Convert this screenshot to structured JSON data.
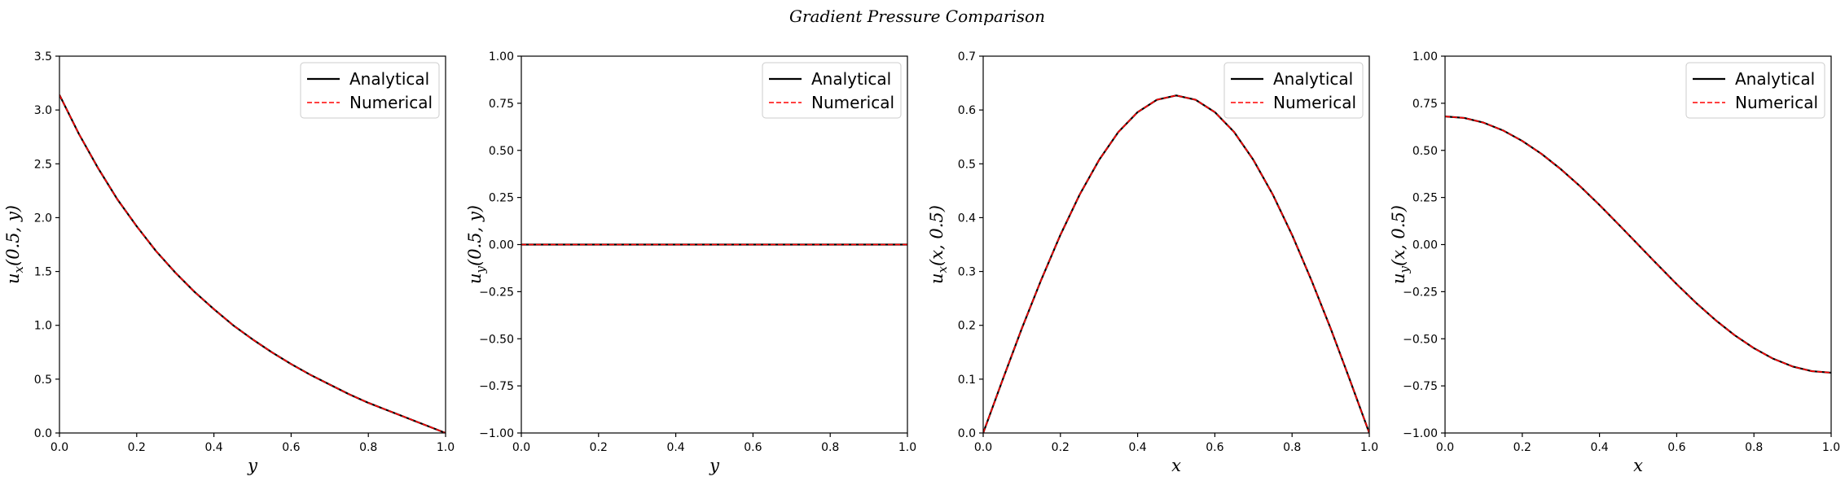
{
  "figure": {
    "title": "Gradient Pressure Comparison"
  },
  "colors": {
    "analytical": "#000000",
    "numerical": "#ff0000",
    "axes": "#000000",
    "legend_border": "#cccccc"
  },
  "chart_data": [
    {
      "type": "line",
      "xlabel": "y",
      "ylabel": "u_x(0.5, y)",
      "ylabel_parts": {
        "var": "u",
        "sub": "x",
        "args": "(0.5, y)"
      },
      "xlim": [
        0,
        1
      ],
      "ylim": [
        0,
        3.5
      ],
      "xticks": [
        0.0,
        0.2,
        0.4,
        0.6,
        0.8,
        1.0
      ],
      "xtick_labels": [
        "0.0",
        "0.2",
        "0.4",
        "0.6",
        "0.8",
        "1.0"
      ],
      "yticks": [
        0,
        0.5,
        1.0,
        1.5,
        2.0,
        2.5,
        3.0,
        3.5
      ],
      "ytick_labels": [
        "0.0",
        "0.5",
        "1.0",
        "1.5",
        "2.0",
        "2.5",
        "3.0",
        "3.5"
      ],
      "legend": {
        "position": "top-right",
        "entries": [
          "Analytical",
          "Numerical"
        ]
      },
      "x": [
        0.0,
        0.05,
        0.1,
        0.15,
        0.2,
        0.25,
        0.3,
        0.35,
        0.4,
        0.45,
        0.5,
        0.55,
        0.6,
        0.65,
        0.7,
        0.75,
        0.8,
        0.85,
        0.9,
        0.95,
        1.0
      ],
      "series": [
        {
          "name": "Analytical",
          "style": "solid",
          "values": [
            3.14,
            2.78,
            2.46,
            2.17,
            1.92,
            1.69,
            1.49,
            1.31,
            1.15,
            1.0,
            0.87,
            0.75,
            0.64,
            0.54,
            0.45,
            0.36,
            0.28,
            0.21,
            0.14,
            0.07,
            0.0
          ]
        },
        {
          "name": "Numerical",
          "style": "dashed",
          "values": [
            3.14,
            2.78,
            2.46,
            2.17,
            1.92,
            1.69,
            1.49,
            1.31,
            1.15,
            1.0,
            0.87,
            0.75,
            0.64,
            0.54,
            0.45,
            0.36,
            0.28,
            0.21,
            0.14,
            0.07,
            0.0
          ]
        }
      ]
    },
    {
      "type": "line",
      "xlabel": "y",
      "ylabel": "u_y(0.5, y)",
      "ylabel_parts": {
        "var": "u",
        "sub": "y",
        "args": "(0.5, y)"
      },
      "xlim": [
        0,
        1
      ],
      "ylim": [
        -1,
        1
      ],
      "xticks": [
        0.0,
        0.2,
        0.4,
        0.6,
        0.8,
        1.0
      ],
      "xtick_labels": [
        "0.0",
        "0.2",
        "0.4",
        "0.6",
        "0.8",
        "1.0"
      ],
      "yticks": [
        -1.0,
        -0.75,
        -0.5,
        -0.25,
        0.0,
        0.25,
        0.5,
        0.75,
        1.0
      ],
      "ytick_labels": [
        "−1.00",
        "−0.75",
        "−0.50",
        "−0.25",
        "0.00",
        "0.25",
        "0.50",
        "0.75",
        "1.00"
      ],
      "legend": {
        "position": "top-right",
        "entries": [
          "Analytical",
          "Numerical"
        ]
      },
      "x": [
        0.0,
        0.25,
        0.5,
        0.75,
        1.0
      ],
      "series": [
        {
          "name": "Analytical",
          "style": "solid",
          "values": [
            0,
            0,
            0,
            0,
            0
          ]
        },
        {
          "name": "Numerical",
          "style": "dashed",
          "values": [
            0,
            0,
            0,
            0,
            0
          ]
        }
      ]
    },
    {
      "type": "line",
      "xlabel": "x",
      "ylabel": "u_x(x, 0.5)",
      "ylabel_parts": {
        "var": "u",
        "sub": "x",
        "args": "(x, 0.5)"
      },
      "xlim": [
        0,
        1
      ],
      "ylim": [
        0,
        0.7
      ],
      "xticks": [
        0.0,
        0.2,
        0.4,
        0.6,
        0.8,
        1.0
      ],
      "xtick_labels": [
        "0.0",
        "0.2",
        "0.4",
        "0.6",
        "0.8",
        "1.0"
      ],
      "yticks": [
        0.0,
        0.1,
        0.2,
        0.3,
        0.4,
        0.5,
        0.6,
        0.7
      ],
      "ytick_labels": [
        "0.0",
        "0.1",
        "0.2",
        "0.3",
        "0.4",
        "0.5",
        "0.6",
        "0.7"
      ],
      "legend": {
        "position": "top-right",
        "entries": [
          "Analytical",
          "Numerical"
        ]
      },
      "x": [
        0.0,
        0.05,
        0.1,
        0.15,
        0.2,
        0.25,
        0.3,
        0.35,
        0.4,
        0.45,
        0.5,
        0.55,
        0.6,
        0.65,
        0.7,
        0.75,
        0.8,
        0.85,
        0.9,
        0.95,
        1.0
      ],
      "series": [
        {
          "name": "Analytical",
          "style": "solid",
          "values": [
            0.0,
            0.098,
            0.194,
            0.284,
            0.368,
            0.443,
            0.507,
            0.559,
            0.596,
            0.619,
            0.627,
            0.619,
            0.596,
            0.559,
            0.507,
            0.443,
            0.368,
            0.284,
            0.194,
            0.098,
            0.0
          ]
        },
        {
          "name": "Numerical",
          "style": "dashed",
          "values": [
            0.0,
            0.098,
            0.194,
            0.284,
            0.368,
            0.443,
            0.507,
            0.559,
            0.596,
            0.619,
            0.627,
            0.619,
            0.596,
            0.559,
            0.507,
            0.443,
            0.368,
            0.284,
            0.194,
            0.098,
            0.0
          ]
        }
      ]
    },
    {
      "type": "line",
      "xlabel": "x",
      "ylabel": "u_y(x, 0.5)",
      "ylabel_parts": {
        "var": "u",
        "sub": "y",
        "args": "(x, 0.5)"
      },
      "xlim": [
        0,
        1
      ],
      "ylim": [
        -1,
        1
      ],
      "xticks": [
        0.0,
        0.2,
        0.4,
        0.6,
        0.8,
        1.0
      ],
      "xtick_labels": [
        "0.0",
        "0.2",
        "0.4",
        "0.6",
        "0.8",
        "1.0"
      ],
      "yticks": [
        -1.0,
        -0.75,
        -0.5,
        -0.25,
        0.0,
        0.25,
        0.5,
        0.75,
        1.0
      ],
      "ytick_labels": [
        "−1.00",
        "−0.75",
        "−0.50",
        "−0.25",
        "0.00",
        "0.25",
        "0.50",
        "0.75",
        "1.00"
      ],
      "legend": {
        "position": "top-right",
        "entries": [
          "Analytical",
          "Numerical"
        ]
      },
      "x": [
        0.0,
        0.05,
        0.1,
        0.15,
        0.2,
        0.25,
        0.3,
        0.35,
        0.4,
        0.45,
        0.5,
        0.55,
        0.6,
        0.65,
        0.7,
        0.75,
        0.8,
        0.85,
        0.9,
        0.95,
        1.0
      ],
      "series": [
        {
          "name": "Analytical",
          "style": "solid",
          "values": [
            0.68,
            0.672,
            0.647,
            0.606,
            0.55,
            0.481,
            0.4,
            0.309,
            0.21,
            0.106,
            0.0,
            -0.106,
            -0.21,
            -0.309,
            -0.4,
            -0.481,
            -0.55,
            -0.606,
            -0.647,
            -0.672,
            -0.68
          ]
        },
        {
          "name": "Numerical",
          "style": "dashed",
          "values": [
            0.68,
            0.672,
            0.647,
            0.606,
            0.55,
            0.481,
            0.4,
            0.309,
            0.21,
            0.106,
            0.0,
            -0.106,
            -0.21,
            -0.309,
            -0.4,
            -0.481,
            -0.55,
            -0.606,
            -0.647,
            -0.672,
            -0.68
          ]
        }
      ]
    }
  ]
}
